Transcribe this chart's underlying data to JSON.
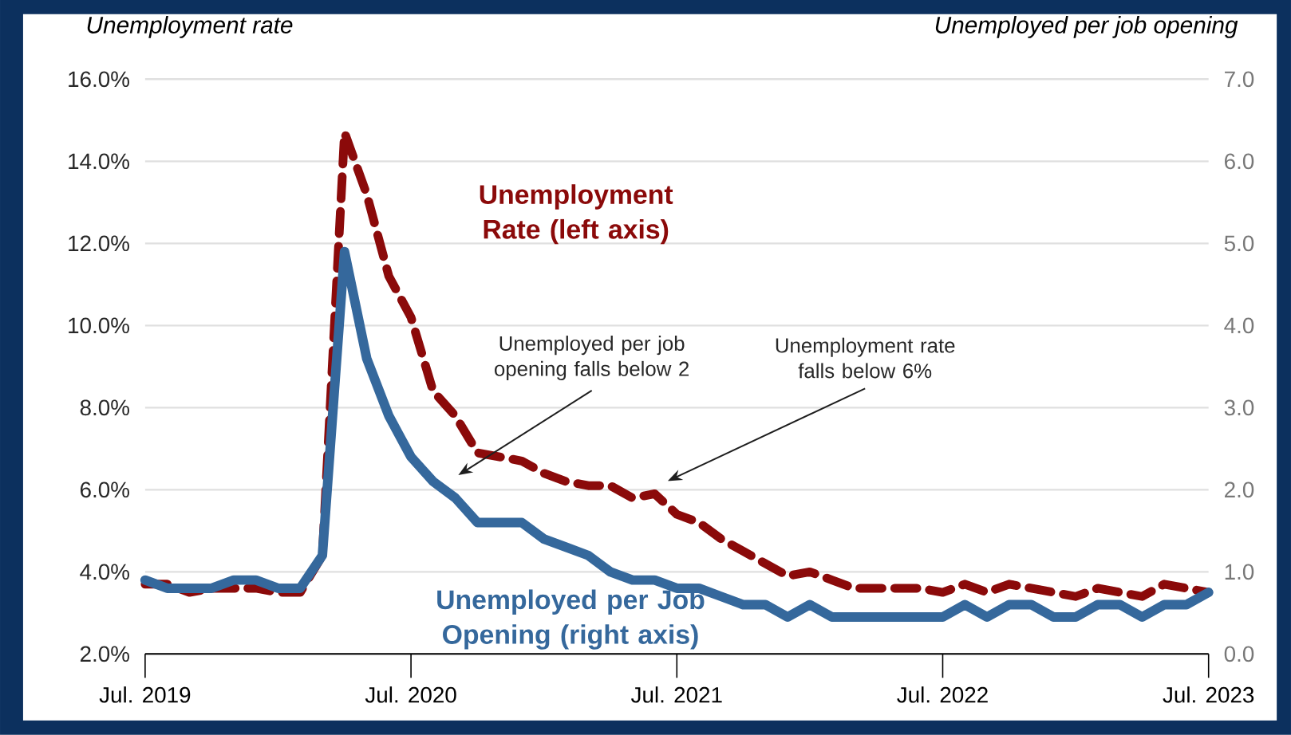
{
  "chart_data": {
    "type": "line",
    "ylabel": "Unemployment rate",
    "y2label": "Unemployed per job opening",
    "x": [
      "2019-07",
      "2019-08",
      "2019-09",
      "2019-10",
      "2019-11",
      "2019-12",
      "2020-01",
      "2020-02",
      "2020-03",
      "2020-04",
      "2020-05",
      "2020-06",
      "2020-07",
      "2020-08",
      "2020-09",
      "2020-10",
      "2020-11",
      "2020-12",
      "2021-01",
      "2021-02",
      "2021-03",
      "2021-04",
      "2021-05",
      "2021-06",
      "2021-07",
      "2021-08",
      "2021-09",
      "2021-10",
      "2021-11",
      "2021-12",
      "2022-01",
      "2022-02",
      "2022-03",
      "2022-04",
      "2022-05",
      "2022-06",
      "2022-07",
      "2022-08",
      "2022-09",
      "2022-10",
      "2022-11",
      "2022-12",
      "2023-01",
      "2023-02",
      "2023-03",
      "2023-04",
      "2023-05",
      "2023-06",
      "2023-07"
    ],
    "series": [
      {
        "name": "Unemployment Rate (left axis)",
        "color": "#8b0a0a",
        "line_style": "dashed",
        "values": [
          3.7,
          3.7,
          3.5,
          3.6,
          3.6,
          3.6,
          3.5,
          3.5,
          4.4,
          14.7,
          13.2,
          11.2,
          10.2,
          8.4,
          7.8,
          6.9,
          6.8,
          6.7,
          6.4,
          6.2,
          6.1,
          6.1,
          5.8,
          5.9,
          5.4,
          5.2,
          4.8,
          4.5,
          4.2,
          3.9,
          4.0,
          3.8,
          3.6,
          3.6,
          3.6,
          3.6,
          3.5,
          3.7,
          3.5,
          3.7,
          3.6,
          3.5,
          3.4,
          3.6,
          3.5,
          3.4,
          3.7,
          3.6,
          3.5
        ]
      },
      {
        "name": "Unemployed per Job Opening (right axis)",
        "color": "#35689c",
        "line_style": "solid",
        "axis": "y2",
        "values": [
          0.9,
          0.8,
          0.8,
          0.8,
          0.9,
          0.9,
          0.8,
          0.8,
          1.2,
          4.9,
          3.6,
          2.9,
          2.4,
          2.1,
          1.9,
          1.6,
          1.6,
          1.6,
          1.4,
          1.3,
          1.2,
          1.0,
          0.9,
          0.9,
          0.8,
          0.8,
          0.7,
          0.6,
          0.6,
          0.45,
          0.6,
          0.45,
          0.45,
          0.45,
          0.45,
          0.45,
          0.45,
          0.6,
          0.45,
          0.6,
          0.6,
          0.45,
          0.45,
          0.6,
          0.6,
          0.45,
          0.6,
          0.6,
          0.75
        ]
      }
    ],
    "xlim": [
      "2019-07",
      "2023-07"
    ],
    "xticks": [
      {
        "value": "2019-07",
        "label": "Jul. 2019"
      },
      {
        "value": "2020-07",
        "label": "Jul. 2020"
      },
      {
        "value": "2021-07",
        "label": "Jul. 2021"
      },
      {
        "value": "2022-07",
        "label": "Jul. 2022"
      },
      {
        "value": "2023-07",
        "label": "Jul. 2023"
      }
    ],
    "ylim": [
      2,
      16
    ],
    "yticks": [
      {
        "value": 2,
        "label": "2.0%"
      },
      {
        "value": 4,
        "label": "4.0%"
      },
      {
        "value": 6,
        "label": "6.0%"
      },
      {
        "value": 8,
        "label": "8.0%"
      },
      {
        "value": 10,
        "label": "10.0%"
      },
      {
        "value": 12,
        "label": "12.0%"
      },
      {
        "value": 14,
        "label": "14.0%"
      },
      {
        "value": 16,
        "label": "16.0%"
      }
    ],
    "y2lim": [
      0,
      7
    ],
    "y2ticks": [
      {
        "value": 0,
        "label": "0.0"
      },
      {
        "value": 1,
        "label": "1.0"
      },
      {
        "value": 2,
        "label": "2.0"
      },
      {
        "value": 3,
        "label": "3.0"
      },
      {
        "value": 4,
        "label": "4.0"
      },
      {
        "value": 5,
        "label": "5.0"
      },
      {
        "value": 6,
        "label": "6.0"
      },
      {
        "value": 7,
        "label": "7.0"
      }
    ],
    "grid": "y",
    "legend": false,
    "marker": "none",
    "annotations": [
      "Unemployed per job opening falls below 2",
      "Unemployment rate falls below 6%"
    ]
  }
}
